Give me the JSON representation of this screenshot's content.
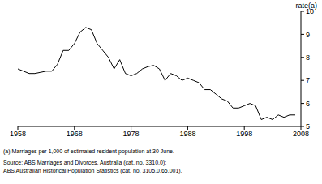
{
  "chart_data": {
    "type": "line",
    "y_label": "rate(a)",
    "annotations": [
      "(a) Marriages per 1,000 of estimated resident population at 30 June.",
      "Source: ABS Marriages and Divorces, Australia (cat. no. 3310.0);",
      "ABS Australian Historical Population Statistics (cat. no. 3105.0.65.001)."
    ],
    "x": [
      1958,
      1959,
      1960,
      1961,
      1962,
      1963,
      1964,
      1965,
      1966,
      1967,
      1968,
      1969,
      1970,
      1971,
      1972,
      1973,
      1974,
      1975,
      1976,
      1977,
      1978,
      1979,
      1980,
      1981,
      1982,
      1983,
      1984,
      1985,
      1986,
      1987,
      1988,
      1989,
      1990,
      1991,
      1992,
      1993,
      1994,
      1995,
      1996,
      1997,
      1998,
      1999,
      2000,
      2001,
      2002,
      2003,
      2004,
      2005,
      2006,
      2007
    ],
    "series": [
      {
        "name": "rate",
        "color": "#000000",
        "values": [
          7.5,
          7.4,
          7.3,
          7.3,
          7.35,
          7.4,
          7.4,
          7.7,
          8.3,
          8.3,
          8.6,
          9.1,
          9.3,
          9.2,
          8.6,
          8.3,
          8.0,
          7.5,
          7.9,
          7.3,
          7.2,
          7.3,
          7.5,
          7.6,
          7.65,
          7.5,
          7.0,
          7.3,
          7.2,
          7.0,
          7.1,
          7.0,
          6.9,
          6.6,
          6.6,
          6.4,
          6.2,
          6.1,
          5.8,
          5.8,
          5.9,
          6.0,
          5.9,
          5.3,
          5.4,
          5.3,
          5.5,
          5.4,
          5.5,
          5.5
        ]
      }
    ],
    "xlim": [
      1958,
      2008
    ],
    "xticks": [
      1958,
      1968,
      1978,
      1988,
      1998,
      2008
    ],
    "ylim": [
      5,
      10
    ],
    "yticks": [
      5,
      6,
      7,
      8,
      9,
      10
    ],
    "grid": false
  }
}
